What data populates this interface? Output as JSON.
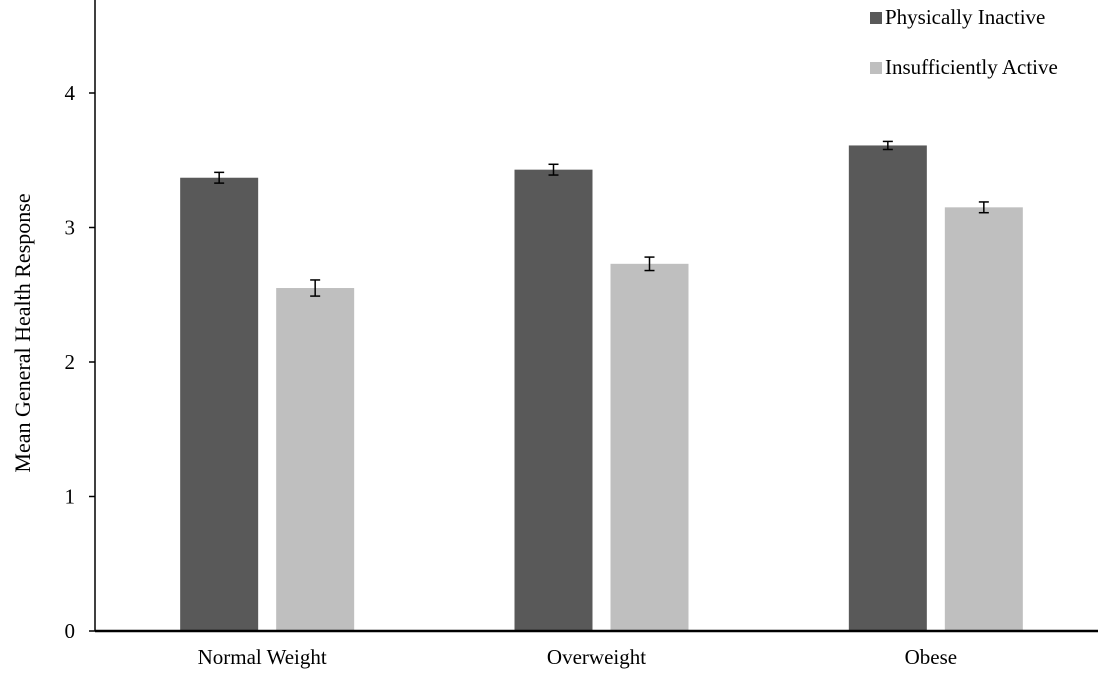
{
  "chart_data": {
    "type": "bar",
    "title": "",
    "xlabel": "",
    "ylabel": "Mean General Health Response",
    "categories": [
      "Normal Weight",
      "Overweight",
      "Obese"
    ],
    "ylim": [
      0,
      4.5
    ],
    "yticks": [
      0,
      1,
      2,
      3,
      4
    ],
    "grid": false,
    "legend_position": "top-right",
    "series": [
      {
        "name": "Physically Inactive",
        "color": "#595959",
        "values": [
          3.37,
          3.43,
          3.61
        ],
        "error": [
          0.04,
          0.04,
          0.03
        ]
      },
      {
        "name": "Insufficiently Active",
        "color": "#bfbfbf",
        "values": [
          2.55,
          2.73,
          3.15
        ],
        "error": [
          0.06,
          0.05,
          0.04
        ]
      }
    ]
  }
}
